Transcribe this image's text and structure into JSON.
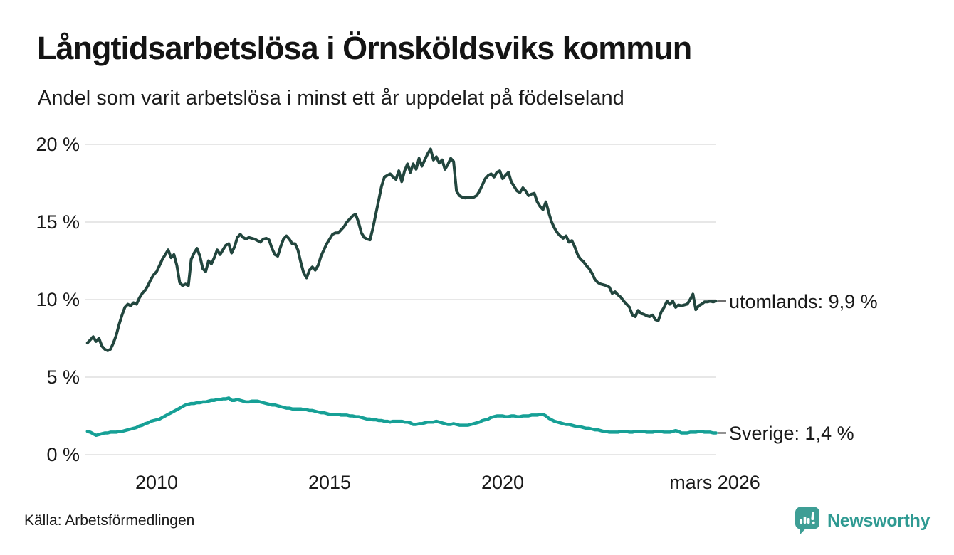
{
  "header": {
    "title": "Långtidsarbetslösa i Örnsköldsviks kommun",
    "subtitle": "Andel som varit arbetslösa i minst ett år uppdelat på födelseland"
  },
  "chart_data": {
    "type": "line",
    "title": "Långtidsarbetslösa i Örnsköldsviks kommun",
    "subtitle": "Andel som varit arbetslösa i minst ett år uppdelat på födelseland",
    "x_frequency": "monthly",
    "x_start": "2008-01",
    "x_end": "2026-03",
    "ylim": [
      0,
      20
    ],
    "grid": true,
    "y_ticks": [
      "20 %",
      "15 %",
      "10 %",
      "5 %",
      "0 %"
    ],
    "y_tick_values": [
      20,
      15,
      10,
      5,
      0
    ],
    "x_ticks": [
      {
        "label": "2010",
        "year": 2010.0
      },
      {
        "label": "2015",
        "year": 2015.0
      },
      {
        "label": "2020",
        "year": 2020.0
      },
      {
        "label": "mars 2026",
        "year": 2026.167
      }
    ],
    "series": [
      {
        "name": "utomlands",
        "end_label": "utomlands: 9,9 %",
        "end_value": 9.9,
        "color": "#22463e",
        "stroke_width": 4,
        "values": [
          7.2,
          7.4,
          7.6,
          7.3,
          7.5,
          7.0,
          6.8,
          6.7,
          6.8,
          7.2,
          7.7,
          8.4,
          9.0,
          9.5,
          9.7,
          9.6,
          9.8,
          9.7,
          10.1,
          10.4,
          10.6,
          10.9,
          11.3,
          11.6,
          11.8,
          12.2,
          12.6,
          12.9,
          13.2,
          12.7,
          12.9,
          12.2,
          11.1,
          10.9,
          11.0,
          10.9,
          12.6,
          13.0,
          13.3,
          12.8,
          12.0,
          11.8,
          12.5,
          12.3,
          12.7,
          13.2,
          12.9,
          13.2,
          13.5,
          13.6,
          13.0,
          13.4,
          14.0,
          14.2,
          14.0,
          13.9,
          14.0,
          13.95,
          13.9,
          13.8,
          13.7,
          13.9,
          13.95,
          13.85,
          13.3,
          12.9,
          12.8,
          13.4,
          13.9,
          14.1,
          13.9,
          13.6,
          13.6,
          13.2,
          12.4,
          11.7,
          11.4,
          11.9,
          12.1,
          11.9,
          12.2,
          12.8,
          13.2,
          13.6,
          13.9,
          14.2,
          14.3,
          14.3,
          14.5,
          14.7,
          15.0,
          15.2,
          15.4,
          15.5,
          15.0,
          14.3,
          14.0,
          13.9,
          13.85,
          14.6,
          15.5,
          16.4,
          17.3,
          17.9,
          18.0,
          18.1,
          17.9,
          17.75,
          18.3,
          17.6,
          18.3,
          18.75,
          18.2,
          18.75,
          18.4,
          19.1,
          18.6,
          19.0,
          19.4,
          19.7,
          19.0,
          19.2,
          18.8,
          19.0,
          18.4,
          18.7,
          19.1,
          18.9,
          17.0,
          16.7,
          16.6,
          16.55,
          16.6,
          16.6,
          16.6,
          16.7,
          17.0,
          17.4,
          17.8,
          18.0,
          18.1,
          17.9,
          18.2,
          18.3,
          17.8,
          18.0,
          18.2,
          17.6,
          17.3,
          17.0,
          16.9,
          17.2,
          17.0,
          16.7,
          16.8,
          16.85,
          16.3,
          16.0,
          15.8,
          16.3,
          15.6,
          15.0,
          14.6,
          14.3,
          14.1,
          13.95,
          14.1,
          13.7,
          13.8,
          13.4,
          12.9,
          12.6,
          12.45,
          12.2,
          12.0,
          11.7,
          11.3,
          11.1,
          11.0,
          10.95,
          10.9,
          10.8,
          10.4,
          10.5,
          10.3,
          10.15,
          9.9,
          9.7,
          9.5,
          9.0,
          8.9,
          9.3,
          9.1,
          9.05,
          8.95,
          8.9,
          9.0,
          8.7,
          8.65,
          9.2,
          9.5,
          9.9,
          9.7,
          9.9,
          9.5,
          9.65,
          9.6,
          9.65,
          9.7,
          10.0,
          10.35,
          9.35,
          9.6,
          9.7,
          9.85,
          9.85,
          9.9,
          9.85,
          9.9
        ]
      },
      {
        "name": "Sverige",
        "end_label": "Sverige: 1,4 %",
        "end_value": 1.4,
        "color": "#16a096",
        "stroke_width": 4.5,
        "values": [
          1.5,
          1.45,
          1.35,
          1.25,
          1.3,
          1.35,
          1.4,
          1.4,
          1.45,
          1.45,
          1.45,
          1.5,
          1.5,
          1.55,
          1.6,
          1.65,
          1.7,
          1.75,
          1.85,
          1.9,
          2.0,
          2.05,
          2.15,
          2.2,
          2.25,
          2.3,
          2.4,
          2.5,
          2.6,
          2.7,
          2.8,
          2.9,
          3.0,
          3.1,
          3.2,
          3.25,
          3.3,
          3.3,
          3.35,
          3.35,
          3.4,
          3.4,
          3.45,
          3.5,
          3.5,
          3.55,
          3.55,
          3.6,
          3.6,
          3.65,
          3.5,
          3.5,
          3.55,
          3.5,
          3.45,
          3.4,
          3.4,
          3.45,
          3.45,
          3.45,
          3.4,
          3.35,
          3.3,
          3.25,
          3.2,
          3.2,
          3.15,
          3.1,
          3.05,
          3.0,
          3.0,
          2.95,
          2.95,
          2.95,
          2.95,
          2.9,
          2.9,
          2.85,
          2.85,
          2.8,
          2.75,
          2.7,
          2.7,
          2.65,
          2.6,
          2.6,
          2.6,
          2.6,
          2.55,
          2.55,
          2.55,
          2.5,
          2.5,
          2.45,
          2.45,
          2.4,
          2.35,
          2.3,
          2.3,
          2.25,
          2.25,
          2.2,
          2.2,
          2.15,
          2.15,
          2.1,
          2.15,
          2.15,
          2.15,
          2.15,
          2.1,
          2.1,
          2.05,
          1.95,
          1.95,
          2.0,
          2.0,
          2.05,
          2.1,
          2.1,
          2.1,
          2.15,
          2.1,
          2.05,
          2.0,
          1.95,
          1.95,
          2.0,
          1.95,
          1.9,
          1.9,
          1.9,
          1.9,
          1.95,
          2.0,
          2.05,
          2.1,
          2.2,
          2.25,
          2.3,
          2.4,
          2.45,
          2.5,
          2.5,
          2.5,
          2.45,
          2.45,
          2.5,
          2.5,
          2.45,
          2.45,
          2.5,
          2.5,
          2.5,
          2.55,
          2.55,
          2.55,
          2.6,
          2.6,
          2.5,
          2.35,
          2.25,
          2.15,
          2.1,
          2.05,
          2.0,
          1.95,
          1.95,
          1.9,
          1.85,
          1.8,
          1.8,
          1.75,
          1.7,
          1.7,
          1.65,
          1.6,
          1.6,
          1.55,
          1.5,
          1.5,
          1.45,
          1.45,
          1.45,
          1.45,
          1.5,
          1.5,
          1.5,
          1.45,
          1.45,
          1.5,
          1.5,
          1.5,
          1.5,
          1.45,
          1.45,
          1.45,
          1.5,
          1.5,
          1.5,
          1.45,
          1.45,
          1.45,
          1.5,
          1.55,
          1.5,
          1.4,
          1.4,
          1.4,
          1.45,
          1.45,
          1.45,
          1.5,
          1.5,
          1.45,
          1.45,
          1.45,
          1.4,
          1.4
        ]
      }
    ],
    "legend_position": "right-end-labels",
    "gridline_color": "#e7e7e7",
    "connector_dash_color": "#6f6f6f"
  },
  "footer": {
    "source": "Källa: Arbetsförmedlingen",
    "brand": "Newsworthy",
    "brand_color": "#2f9a92",
    "brand_icon_color": "#3e9e95"
  }
}
